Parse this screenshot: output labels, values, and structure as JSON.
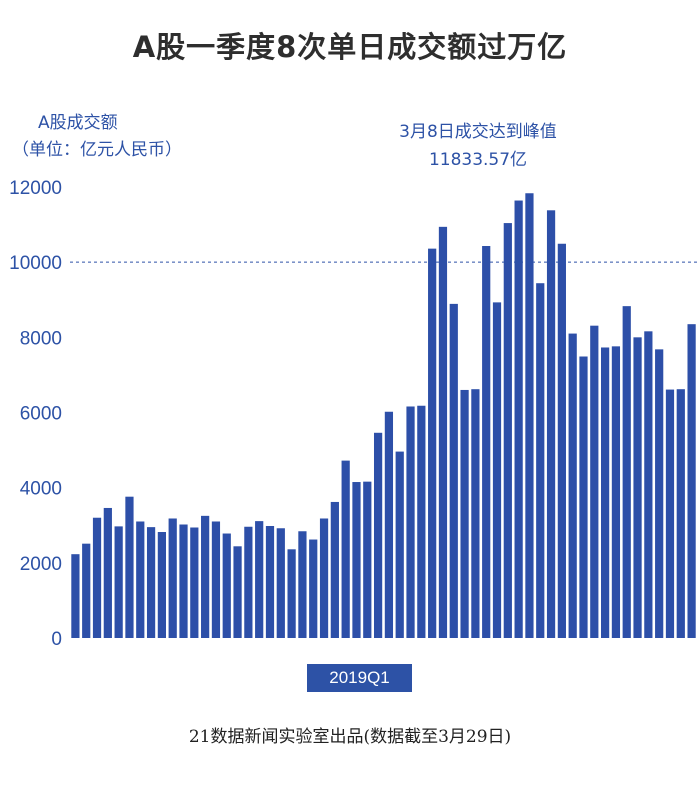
{
  "title": "A股一季度8次单日成交额过万亿",
  "source": "21数据新闻实验室出品(数据截至3月29日)",
  "colors": {
    "bar": "#2d4fa8",
    "accent": "#2d52a6"
  },
  "chart_data": {
    "type": "bar",
    "ylabel_line1": "A股成交额",
    "ylabel_line2": "（单位：亿元人民币）",
    "xlabel": "2019Q1",
    "ylim": [
      0,
      12000
    ],
    "yticks": [
      0,
      2000,
      4000,
      6000,
      8000,
      10000,
      12000
    ],
    "reference_line": 10000,
    "grid": false,
    "annotation_line1": "3月8日成交达到峰值",
    "annotation_line2": "11833.57亿",
    "values": [
      2230,
      2510,
      3200,
      3460,
      2970,
      3760,
      3100,
      2950,
      2820,
      3180,
      3020,
      2940,
      3250,
      3100,
      2780,
      2440,
      2960,
      3110,
      2980,
      2920,
      2360,
      2840,
      2620,
      3180,
      3620,
      4720,
      4150,
      4160,
      5460,
      6020,
      4960,
      6160,
      6180,
      10360,
      10940,
      8890,
      6600,
      6620,
      10430,
      8930,
      11040,
      11640,
      11833.57,
      9440,
      11380,
      10490,
      8100,
      7490,
      8310,
      7730,
      7760,
      8830,
      8000,
      8160,
      7680,
      6610,
      6620,
      8350
    ]
  }
}
